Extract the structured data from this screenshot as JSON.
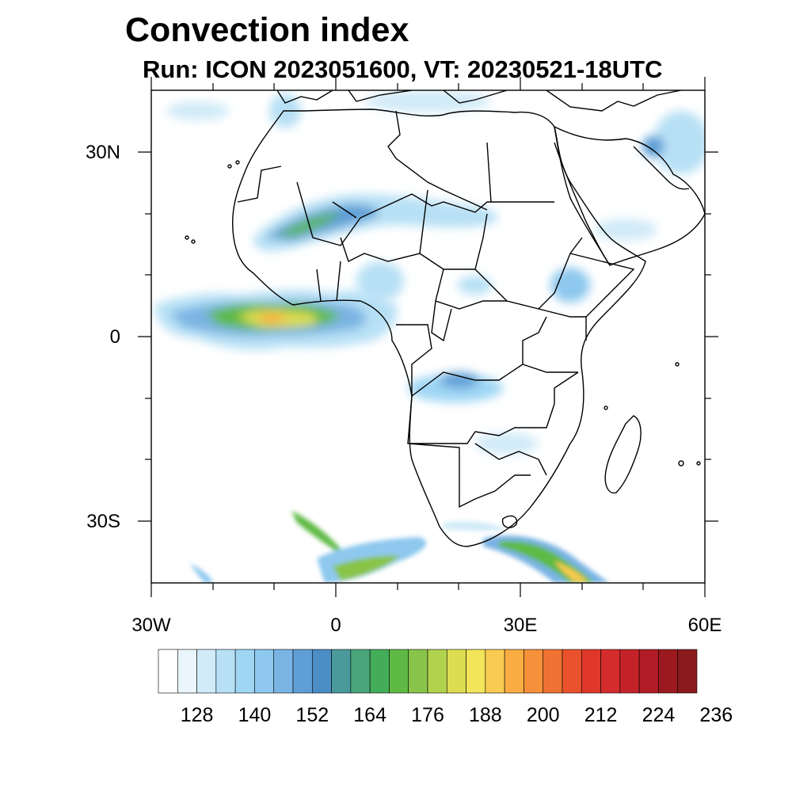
{
  "title": "Convection index",
  "subtitle": "Run: ICON 2023051600,  VT: 20230521-18UTC",
  "map": {
    "region": "Africa",
    "lon_range": [
      -30,
      60
    ],
    "lat_range": [
      -40,
      40
    ],
    "lat_labels": [
      "30N",
      "0",
      "30S"
    ],
    "lon_labels": [
      "30W",
      "0",
      "30E",
      "60E"
    ]
  },
  "colorbar": {
    "colors": [
      "#ffffff",
      "#eaf5fc",
      "#d1ebf8",
      "#b7e0f5",
      "#9fd6f4",
      "#8ec8ee",
      "#7ab4e3",
      "#5f9fd6",
      "#4b8dc5",
      "#4a9a9c",
      "#4aa67a",
      "#44ad5a",
      "#5fba45",
      "#89c44a",
      "#b1d24d",
      "#dddd52",
      "#f3e55a",
      "#f9cb50",
      "#f9ad42",
      "#f6903a",
      "#ef7232",
      "#e9522c",
      "#df382b",
      "#d42c2d",
      "#c42229",
      "#b11c26",
      "#9c1a1f",
      "#8a1a1c"
    ],
    "labels": [
      "128",
      "140",
      "152",
      "164",
      "176",
      "188",
      "200",
      "212",
      "224",
      "236"
    ]
  },
  "colors": {
    "land_outline": "#000000",
    "frame": "#000000"
  }
}
